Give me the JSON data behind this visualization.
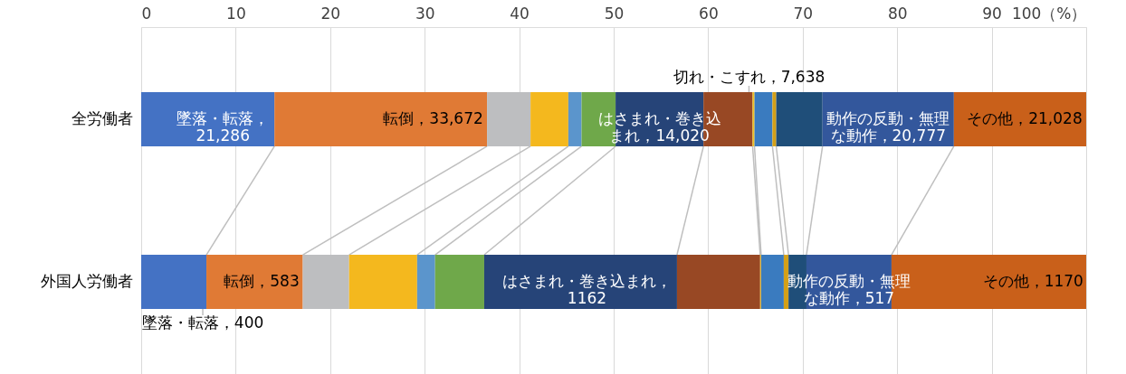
{
  "chart_data": {
    "type": "bar",
    "orientation": "horizontal",
    "stacked": true,
    "categories": [
      "全労働者",
      "外国人労働者"
    ],
    "xlim": [
      0,
      100
    ],
    "xticks": [
      0,
      10,
      20,
      30,
      40,
      50,
      60,
      70,
      80,
      90,
      {
        "value": 100,
        "label": "100（%）"
      }
    ],
    "grid": "x",
    "series": [
      {
        "color": "#4472c4",
        "values": [
          14.1,
          6.9
        ]
      },
      {
        "color": "#e07a35",
        "values": [
          22.5,
          10.2
        ]
      },
      {
        "color": "#bdbec0",
        "values": [
          4.6,
          4.9
        ]
      },
      {
        "color": "#f4b81e",
        "values": [
          4.0,
          7.2
        ]
      },
      {
        "color": "#5b95cc",
        "values": [
          1.4,
          1.9
        ]
      },
      {
        "color": "#6fa84a",
        "values": [
          3.6,
          5.2
        ]
      },
      {
        "color": "#264478",
        "values": [
          9.3,
          20.4
        ]
      },
      {
        "color": "#984824",
        "values": [
          5.2,
          8.8
        ]
      },
      {
        "color": "#f0c020",
        "values": [
          0.2,
          0.1
        ]
      },
      {
        "color": "#3a7bbf",
        "values": [
          1.9,
          2.4
        ]
      },
      {
        "color": "#d4a017",
        "values": [
          0.4,
          0.5
        ]
      },
      {
        "color": "#1f4e79",
        "values": [
          4.9,
          1.9
        ]
      },
      {
        "color": "#33579c",
        "values": [
          13.9,
          9.0
        ]
      },
      {
        "color": "#c9601a",
        "values": [
          14.0,
          20.6
        ]
      }
    ],
    "annotations": [
      {
        "text": "墜落・転落，21,286",
        "x": 14.1,
        "y": "全労働者"
      },
      {
        "text": "転倒，33,672",
        "x": 36.6,
        "y": "全労働者"
      },
      {
        "text": "はさまれ・巻き込まれ，14,020",
        "x": 59.5,
        "y": "全労働者"
      },
      {
        "text": "切れ・こすれ，7,638",
        "x": 64.7,
        "y": "全労働者"
      },
      {
        "text": "動作の反動・無理な動作，20,777",
        "x": 86.0,
        "y": "全労働者"
      },
      {
        "text": "その他，21,028",
        "x": 100.0,
        "y": "全労働者"
      },
      {
        "text": "墜落・転落，400",
        "x": 6.9,
        "y": "外国人労働者"
      },
      {
        "text": "転倒，583",
        "x": 17.1,
        "y": "外国人労働者"
      },
      {
        "text": "はさまれ・巻き込まれ，1162",
        "x": 56.7,
        "y": "外国人労働者"
      },
      {
        "text": "動作の反動・無理な動作，517",
        "x": 79.4,
        "y": "外国人労働者"
      },
      {
        "text": "その他，1170",
        "x": 100.0,
        "y": "外国人労働者"
      }
    ]
  }
}
